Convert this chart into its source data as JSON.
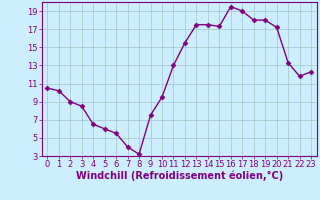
{
  "x": [
    0,
    1,
    2,
    3,
    4,
    5,
    6,
    7,
    8,
    9,
    10,
    11,
    12,
    13,
    14,
    15,
    16,
    17,
    18,
    19,
    20,
    21,
    22,
    23
  ],
  "y": [
    10.5,
    10.2,
    9.0,
    8.5,
    6.5,
    6.0,
    5.5,
    4.0,
    3.2,
    7.5,
    9.5,
    13.0,
    15.5,
    17.5,
    17.5,
    17.3,
    19.5,
    19.0,
    18.0,
    18.0,
    17.2,
    13.3,
    11.8,
    12.3
  ],
  "line_color": "#800080",
  "marker": "D",
  "marker_size": 2.5,
  "linewidth": 1.0,
  "background_color": "#cceeff",
  "grid_color": "#aacccc",
  "xlabel": "Windchill (Refroidissement éolien,°C)",
  "xlabel_fontsize": 7,
  "ylim": [
    3,
    20
  ],
  "xlim": [
    -0.5,
    23.5
  ],
  "yticks": [
    3,
    5,
    7,
    9,
    11,
    13,
    15,
    17,
    19
  ],
  "xticks": [
    0,
    1,
    2,
    3,
    4,
    5,
    6,
    7,
    8,
    9,
    10,
    11,
    12,
    13,
    14,
    15,
    16,
    17,
    18,
    19,
    20,
    21,
    22,
    23
  ],
  "tick_fontsize": 6,
  "tick_color": "#800080",
  "label_color": "#800080",
  "spine_color": "#800080"
}
